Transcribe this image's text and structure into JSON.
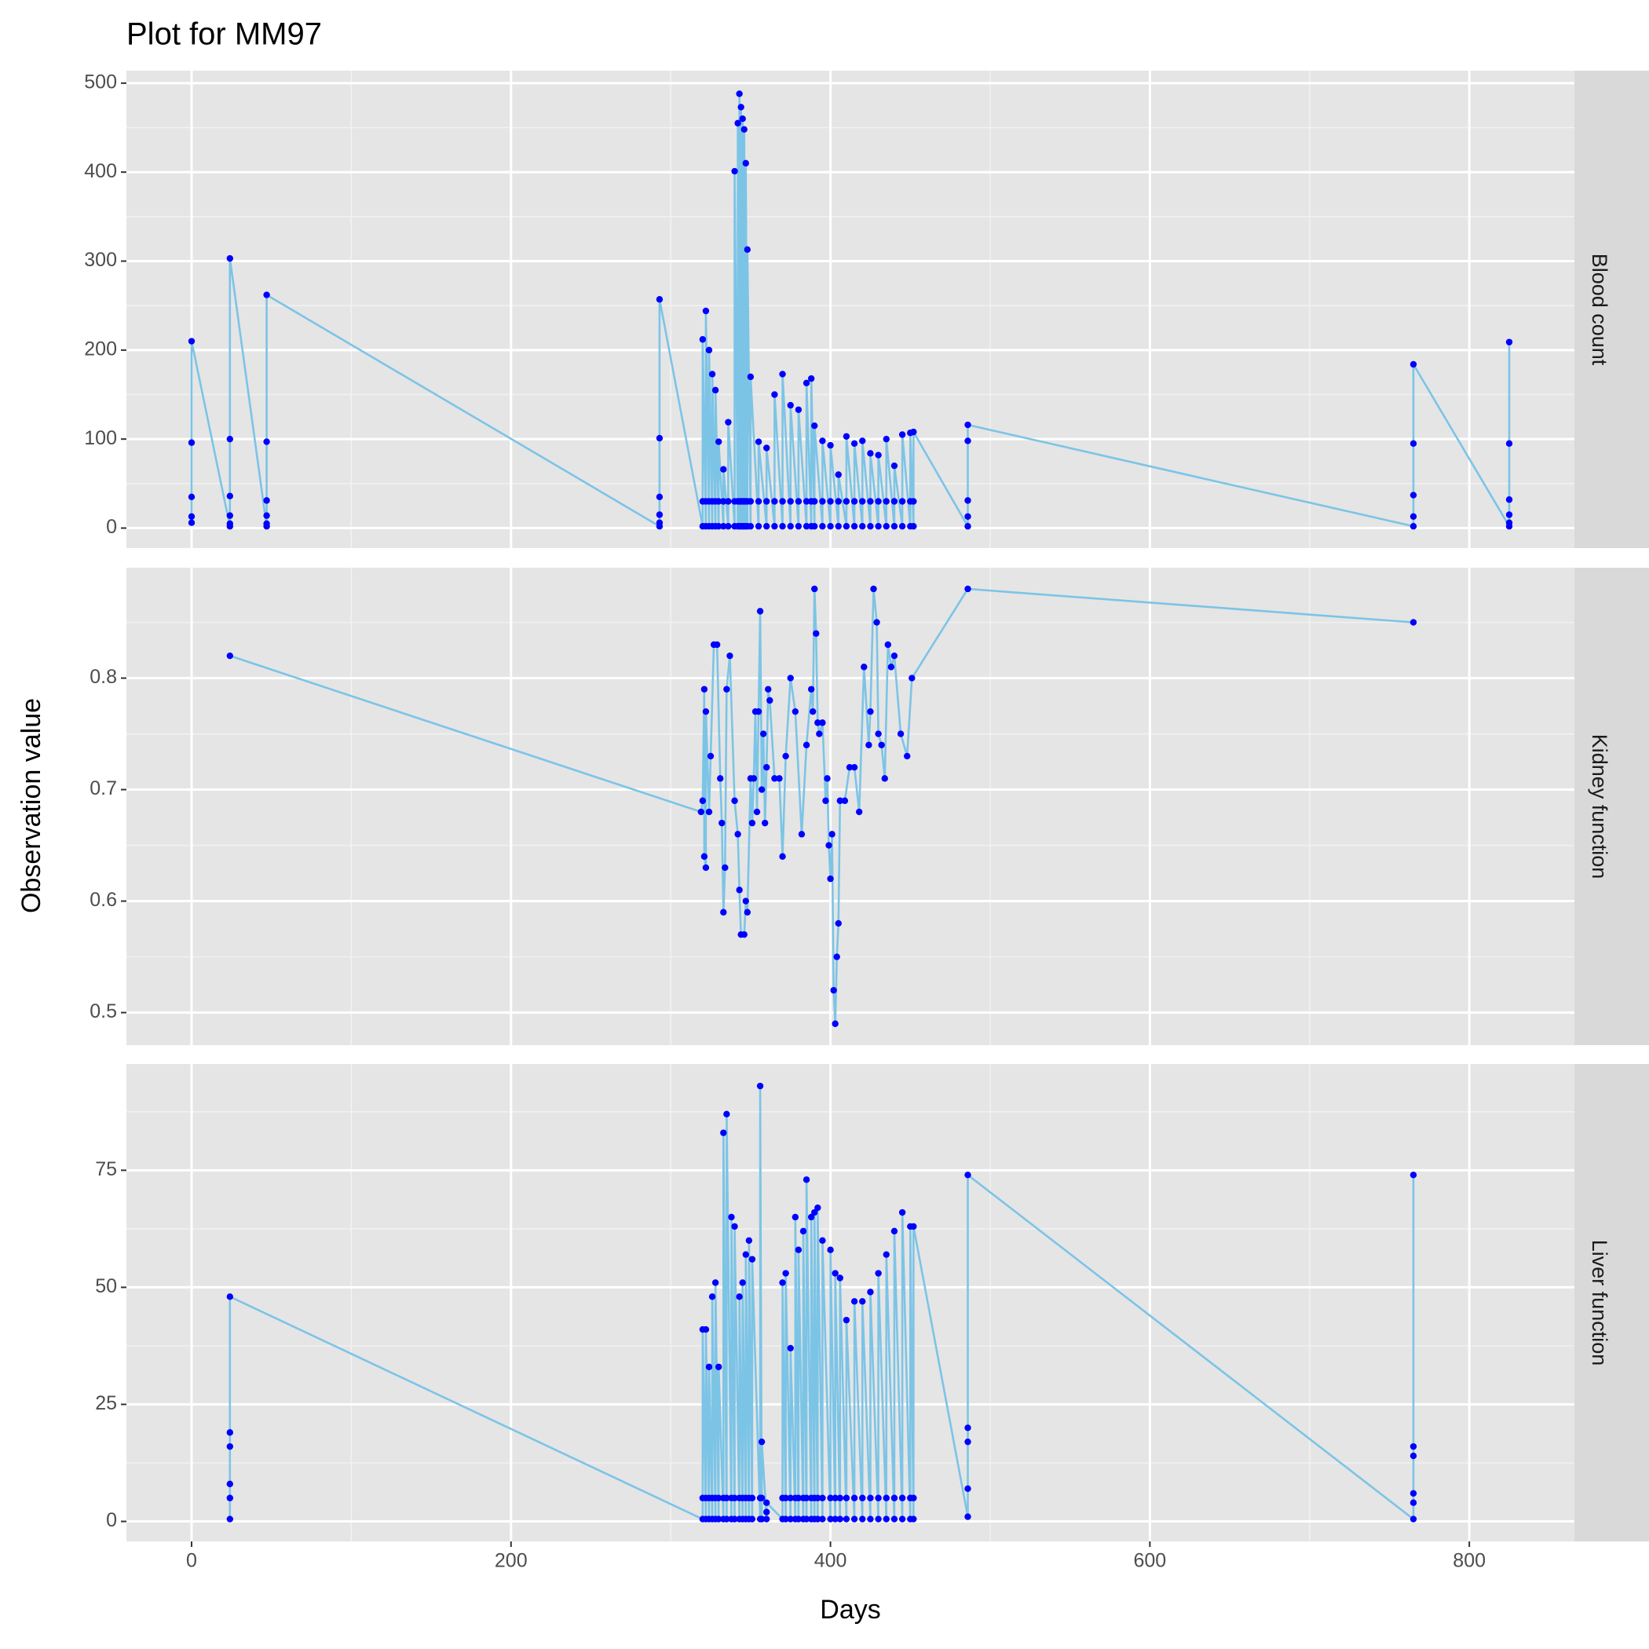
{
  "title": "Plot for MM97",
  "xlabel": "Days",
  "ylabel": "Observation value",
  "chart_data": [
    {
      "type": "line",
      "facet": "Blood count",
      "color": "#7cc4e6",
      "point_color": "#0000ff",
      "xlim": [
        -40.8,
        865.8
      ],
      "xticks": [
        0,
        200,
        400,
        600,
        800
      ],
      "xminor": [
        100,
        300,
        500,
        700
      ],
      "ylim": [
        -22.5,
        514
      ],
      "yticks": [
        0,
        100,
        200,
        300,
        400,
        500
      ],
      "yminor": [
        50,
        150,
        250,
        350,
        450
      ],
      "x": [
        0,
        0,
        0,
        0,
        0,
        24,
        24,
        24,
        24,
        24,
        24,
        47,
        47,
        47,
        47,
        47,
        47,
        293,
        293,
        293,
        293,
        293,
        293,
        320,
        320,
        320,
        322,
        322,
        322,
        324,
        324,
        324,
        326,
        326,
        326,
        328,
        328,
        328,
        330,
        330,
        330,
        333,
        333,
        333,
        336,
        336,
        336,
        340,
        340,
        340,
        342,
        342,
        342,
        343,
        343,
        343,
        344,
        344,
        344,
        345,
        345,
        345,
        346,
        346,
        346,
        347,
        347,
        347,
        348,
        348,
        348,
        350,
        350,
        350,
        355,
        355,
        355,
        360,
        360,
        360,
        365,
        365,
        365,
        370,
        370,
        370,
        375,
        375,
        375,
        380,
        380,
        380,
        385,
        385,
        385,
        388,
        388,
        388,
        390,
        390,
        390,
        395,
        395,
        395,
        400,
        400,
        400,
        405,
        405,
        405,
        410,
        410,
        410,
        415,
        415,
        415,
        420,
        420,
        420,
        425,
        425,
        425,
        430,
        430,
        430,
        435,
        435,
        435,
        440,
        440,
        440,
        445,
        445,
        445,
        450,
        450,
        450,
        452,
        452,
        452,
        486,
        486,
        486,
        486,
        486,
        765,
        765,
        765,
        765,
        765,
        825,
        825,
        825,
        825,
        825,
        825
      ],
      "values": [
        6,
        13,
        35,
        96,
        210,
        2,
        5,
        14,
        36,
        100,
        303,
        2,
        5,
        14,
        31,
        97,
        262,
        2,
        6,
        15,
        35,
        101,
        257,
        2,
        30,
        212,
        2,
        30,
        244,
        2,
        30,
        200,
        2,
        30,
        173,
        2,
        30,
        155,
        2,
        30,
        97,
        2,
        30,
        66,
        2,
        30,
        119,
        2,
        30,
        401,
        2,
        30,
        455,
        2,
        30,
        488,
        2,
        30,
        473,
        2,
        30,
        460,
        2,
        30,
        448,
        2,
        30,
        410,
        2,
        30,
        313,
        2,
        30,
        170,
        2,
        30,
        97,
        2,
        30,
        90,
        2,
        30,
        150,
        2,
        30,
        173,
        2,
        30,
        138,
        2,
        30,
        133,
        2,
        30,
        163,
        2,
        30,
        168,
        2,
        30,
        115,
        2,
        30,
        98,
        2,
        30,
        93,
        2,
        30,
        60,
        2,
        30,
        103,
        2,
        30,
        95,
        2,
        30,
        98,
        2,
        30,
        84,
        2,
        30,
        82,
        2,
        30,
        100,
        2,
        30,
        70,
        2,
        30,
        105,
        2,
        30,
        107,
        2,
        30,
        108,
        2,
        13,
        31,
        98,
        116,
        2,
        13,
        37,
        95,
        184,
        2,
        6,
        15,
        32,
        95,
        209
      ]
    },
    {
      "type": "line",
      "facet": "Kidney function",
      "color": "#7cc4e6",
      "point_color": "#0000ff",
      "xlim": [
        -40.8,
        865.8
      ],
      "xticks": [
        0,
        200,
        400,
        600,
        800
      ],
      "xminor": [
        100,
        300,
        500,
        700
      ],
      "ylim": [
        0.4708,
        0.899
      ],
      "yticks": [
        0.5,
        0.6,
        0.7,
        0.8
      ],
      "yminor": [
        0.55,
        0.65,
        0.75,
        0.85
      ],
      "x": [
        24,
        319,
        320,
        321,
        321,
        322,
        322,
        324,
        325,
        327,
        329,
        331,
        332,
        333,
        334,
        335,
        337,
        340,
        342,
        343,
        344,
        346,
        347,
        348,
        350,
        351,
        352,
        353,
        354,
        355,
        356,
        357,
        358,
        359,
        360,
        361,
        362,
        365,
        368,
        370,
        372,
        375,
        378,
        382,
        385,
        388,
        389,
        390,
        391,
        392,
        393,
        395,
        397,
        398,
        399,
        400,
        401,
        402,
        403,
        404,
        405,
        406,
        409,
        412,
        415,
        418,
        421,
        424,
        425,
        427,
        429,
        430,
        432,
        434,
        436,
        438,
        440,
        444,
        448,
        451,
        486,
        765
      ],
      "values": [
        0.82,
        0.68,
        0.69,
        0.79,
        0.64,
        0.63,
        0.77,
        0.68,
        0.73,
        0.83,
        0.83,
        0.71,
        0.67,
        0.59,
        0.63,
        0.79,
        0.82,
        0.69,
        0.66,
        0.61,
        0.57,
        0.57,
        0.6,
        0.59,
        0.71,
        0.67,
        0.71,
        0.77,
        0.68,
        0.77,
        0.86,
        0.7,
        0.75,
        0.67,
        0.72,
        0.79,
        0.78,
        0.71,
        0.71,
        0.64,
        0.73,
        0.8,
        0.77,
        0.66,
        0.74,
        0.79,
        0.77,
        0.88,
        0.84,
        0.76,
        0.75,
        0.76,
        0.69,
        0.71,
        0.65,
        0.62,
        0.66,
        0.52,
        0.49,
        0.55,
        0.58,
        0.69,
        0.69,
        0.72,
        0.72,
        0.68,
        0.81,
        0.74,
        0.77,
        0.88,
        0.85,
        0.75,
        0.74,
        0.71,
        0.83,
        0.81,
        0.82,
        0.75,
        0.73,
        0.8,
        0.88,
        0.85
      ]
    },
    {
      "type": "line",
      "facet": "Liver function",
      "color": "#7cc4e6",
      "point_color": "#0000ff",
      "xlim": [
        -40.8,
        865.8
      ],
      "xticks": [
        0,
        200,
        400,
        600,
        800
      ],
      "xminor": [
        100,
        300,
        500,
        700
      ],
      "ylim": [
        -4.27,
        97.7
      ],
      "yticks": [
        0,
        25,
        50,
        75
      ],
      "yminor": [
        12.5,
        37.5,
        62.5,
        87.5
      ],
      "x": [
        24,
        24,
        24,
        24,
        24,
        24,
        320,
        320,
        320,
        322,
        322,
        322,
        324,
        324,
        324,
        326,
        326,
        326,
        328,
        328,
        328,
        330,
        330,
        330,
        333,
        333,
        333,
        335,
        335,
        335,
        338,
        338,
        338,
        340,
        340,
        340,
        343,
        343,
        343,
        345,
        345,
        345,
        347,
        347,
        347,
        349,
        349,
        349,
        351,
        351,
        351,
        356,
        356,
        356,
        357,
        357,
        357,
        360,
        360,
        360,
        370,
        370,
        370,
        372,
        372,
        372,
        375,
        375,
        375,
        378,
        378,
        378,
        380,
        380,
        380,
        383,
        383,
        383,
        385,
        385,
        385,
        388,
        388,
        388,
        390,
        390,
        390,
        392,
        392,
        392,
        395,
        395,
        395,
        400,
        400,
        400,
        403,
        403,
        403,
        406,
        406,
        406,
        410,
        410,
        410,
        415,
        415,
        415,
        420,
        420,
        420,
        425,
        425,
        425,
        430,
        430,
        430,
        435,
        435,
        435,
        440,
        440,
        440,
        445,
        445,
        445,
        450,
        450,
        450,
        452,
        452,
        452,
        486,
        486,
        486,
        486,
        486,
        765,
        765,
        765,
        765,
        765,
        765
      ],
      "values": [
        0.5,
        5,
        8,
        16,
        19,
        48,
        0.5,
        5,
        41,
        0.5,
        5,
        41,
        0.5,
        5,
        33,
        0.5,
        5,
        48,
        0.5,
        5,
        51,
        0.5,
        5,
        33,
        0.5,
        5,
        83,
        0.5,
        5,
        87,
        0.5,
        5,
        65,
        0.5,
        5,
        63,
        0.5,
        5,
        48,
        0.5,
        5,
        51,
        0.5,
        5,
        57,
        0.5,
        5,
        60,
        0.5,
        5,
        56,
        0.5,
        5,
        93,
        0.5,
        5,
        17,
        0.5,
        2,
        4,
        0.5,
        5,
        51,
        0.5,
        5,
        53,
        0.5,
        5,
        37,
        0.5,
        5,
        65,
        0.5,
        5,
        58,
        0.5,
        5,
        62,
        0.5,
        5,
        73,
        0.5,
        5,
        65,
        0.5,
        5,
        66,
        0.5,
        5,
        67,
        0.5,
        5,
        60,
        0.5,
        5,
        58,
        0.5,
        5,
        53,
        0.5,
        5,
        52,
        0.5,
        5,
        43,
        0.5,
        5,
        47,
        0.5,
        5,
        47,
        0.5,
        5,
        49,
        0.5,
        5,
        53,
        0.5,
        5,
        57,
        0.5,
        5,
        62,
        0.5,
        5,
        66,
        0.5,
        5,
        63,
        0.5,
        5,
        63,
        1,
        7,
        17,
        20,
        74,
        0.5,
        4,
        6,
        14,
        16,
        74
      ]
    }
  ]
}
